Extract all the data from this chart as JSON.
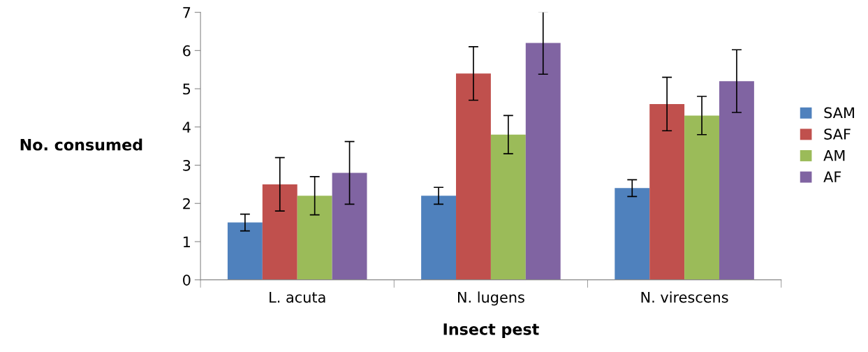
{
  "chart_data": {
    "type": "bar",
    "xlabel": "Insect pest",
    "ylabel": "No. consumed",
    "categories": [
      "L. acuta",
      "N. lugens",
      "N. virescens"
    ],
    "series": [
      {
        "name": "SAM",
        "color": "#4f81bd",
        "values": [
          1.5,
          2.2,
          2.4
        ],
        "errors": [
          0.22,
          0.22,
          0.22
        ]
      },
      {
        "name": "SAF",
        "color": "#c0504d",
        "values": [
          2.5,
          5.4,
          4.6
        ],
        "errors": [
          0.7,
          0.7,
          0.7
        ]
      },
      {
        "name": "AM",
        "color": "#9bbb59",
        "values": [
          2.2,
          3.8,
          4.3
        ],
        "errors": [
          0.5,
          0.5,
          0.5
        ]
      },
      {
        "name": "AF",
        "color": "#8064a2",
        "values": [
          2.8,
          6.2,
          5.2
        ],
        "errors": [
          0.82,
          0.82,
          0.82
        ]
      }
    ],
    "ylim": [
      0,
      7
    ],
    "yticks": [
      0,
      1,
      2,
      3,
      4,
      5,
      6,
      7
    ],
    "grid": false,
    "legend": "right"
  }
}
